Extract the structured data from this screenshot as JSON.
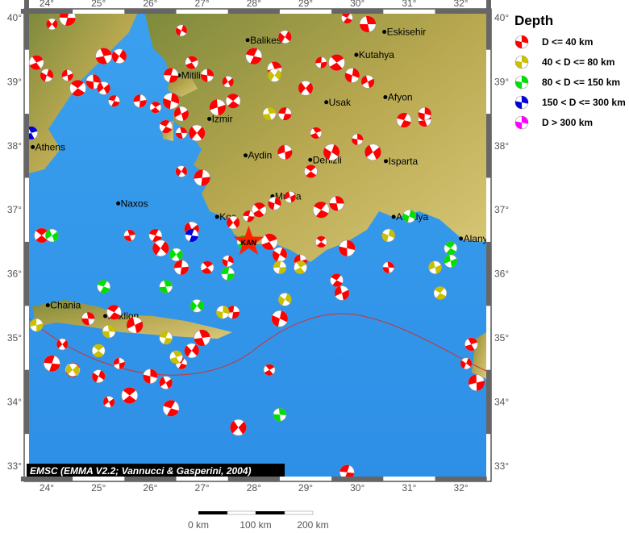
{
  "legend": {
    "title": "Depth",
    "items": [
      {
        "label": "D <= 40 km",
        "color": "#ff0000"
      },
      {
        "label": "40 < D <= 80 km",
        "color": "#c8c000"
      },
      {
        "label": "80 < D <= 150 km",
        "color": "#00e000"
      },
      {
        "label": "150 < D <= 300 km",
        "color": "#0000dd"
      },
      {
        "label": "D > 300 km",
        "color": "#ff00ff"
      }
    ]
  },
  "credit": "EMSC (EMMA V2.2; Vannucci & Gasperini, 2004)",
  "lon_ticks": [
    "24°",
    "25°",
    "26°",
    "27°",
    "28°",
    "29°",
    "30°",
    "31°",
    "32°"
  ],
  "lat_ticks": [
    "40°",
    "39°",
    "38°",
    "37°",
    "36°",
    "35°",
    "34°",
    "33°"
  ],
  "scale": {
    "labels": [
      "0 km",
      "100 km",
      "200 km"
    ]
  },
  "star": {
    "label": "KAN",
    "lon": 27.9,
    "lat": 36.5,
    "color": "#ff2000"
  },
  "cities": [
    {
      "name": "Balikesir",
      "lon": 27.88,
      "lat": 39.65
    },
    {
      "name": "Eskisehir",
      "lon": 30.52,
      "lat": 39.78
    },
    {
      "name": "Kutahya",
      "lon": 29.98,
      "lat": 39.42
    },
    {
      "name": "Mitilini",
      "lon": 26.55,
      "lat": 39.1
    },
    {
      "name": "Izmir",
      "lon": 27.14,
      "lat": 38.42
    },
    {
      "name": "Afyon",
      "lon": 30.54,
      "lat": 38.76
    },
    {
      "name": "Usak",
      "lon": 29.4,
      "lat": 38.68
    },
    {
      "name": "Athens",
      "lon": 23.73,
      "lat": 37.98
    },
    {
      "name": "Aydin",
      "lon": 27.84,
      "lat": 37.85
    },
    {
      "name": "Denizli",
      "lon": 29.09,
      "lat": 37.78
    },
    {
      "name": "Isparta",
      "lon": 30.55,
      "lat": 37.76
    },
    {
      "name": "Mugla",
      "lon": 28.36,
      "lat": 37.21
    },
    {
      "name": "Naxos",
      "lon": 25.38,
      "lat": 37.1
    },
    {
      "name": "Kos",
      "lon": 27.29,
      "lat": 36.89
    },
    {
      "name": "Antalya",
      "lon": 30.7,
      "lat": 36.89
    },
    {
      "name": "Alanya",
      "lon": 32.0,
      "lat": 36.55
    },
    {
      "name": "Chania",
      "lon": 24.02,
      "lat": 35.51
    },
    {
      "name": "Iraklion",
      "lon": 25.13,
      "lat": 35.34
    }
  ],
  "events": [
    [
      24.1,
      39.9,
      0
    ],
    [
      24.4,
      40.0,
      0
    ],
    [
      23.8,
      39.3,
      0
    ],
    [
      24.0,
      39.1,
      0
    ],
    [
      24.4,
      39.1,
      0
    ],
    [
      24.6,
      38.9,
      0
    ],
    [
      24.9,
      39.0,
      0
    ],
    [
      25.1,
      38.9,
      0
    ],
    [
      25.3,
      38.7,
      0
    ],
    [
      25.1,
      39.4,
      0
    ],
    [
      25.4,
      39.4,
      0
    ],
    [
      25.8,
      38.7,
      0
    ],
    [
      26.1,
      38.6,
      0
    ],
    [
      26.4,
      38.7,
      0
    ],
    [
      26.6,
      38.5,
      0
    ],
    [
      26.3,
      38.3,
      0
    ],
    [
      26.6,
      38.2,
      0
    ],
    [
      26.9,
      38.2,
      0
    ],
    [
      26.4,
      39.1,
      0
    ],
    [
      26.8,
      39.3,
      0
    ],
    [
      26.6,
      39.8,
      0
    ],
    [
      27.3,
      38.6,
      0
    ],
    [
      27.6,
      38.7,
      0
    ],
    [
      27.1,
      39.1,
      0
    ],
    [
      27.5,
      39.0,
      0
    ],
    [
      28.0,
      39.4,
      0
    ],
    [
      28.4,
      39.2,
      0
    ],
    [
      28.6,
      39.7,
      0
    ],
    [
      29.3,
      39.3,
      0
    ],
    [
      29.6,
      39.3,
      0
    ],
    [
      29.9,
      39.1,
      0
    ],
    [
      30.2,
      39.0,
      0
    ],
    [
      29.8,
      40.0,
      0
    ],
    [
      30.2,
      39.9,
      0
    ],
    [
      29.0,
      38.9,
      0
    ],
    [
      28.6,
      38.5,
      0
    ],
    [
      29.2,
      38.2,
      0
    ],
    [
      29.5,
      37.9,
      0
    ],
    [
      28.6,
      37.9,
      0
    ],
    [
      29.1,
      37.6,
      0
    ],
    [
      30.0,
      38.1,
      0
    ],
    [
      30.3,
      37.9,
      0
    ],
    [
      30.9,
      38.4,
      0
    ],
    [
      31.3,
      38.4,
      0
    ],
    [
      26.6,
      37.6,
      0
    ],
    [
      27.0,
      37.5,
      0
    ],
    [
      28.1,
      37.0,
      0
    ],
    [
      28.4,
      37.1,
      0
    ],
    [
      28.7,
      37.2,
      0
    ],
    [
      29.3,
      37.0,
      0
    ],
    [
      29.6,
      37.1,
      0
    ],
    [
      27.6,
      36.8,
      0
    ],
    [
      27.9,
      36.9,
      0
    ],
    [
      28.3,
      36.5,
      0
    ],
    [
      28.5,
      36.3,
      0
    ],
    [
      28.9,
      36.2,
      0
    ],
    [
      29.3,
      36.5,
      0
    ],
    [
      29.8,
      36.4,
      0
    ],
    [
      26.8,
      36.7,
      0
    ],
    [
      26.1,
      36.6,
      0
    ],
    [
      25.6,
      36.6,
      0
    ],
    [
      26.2,
      36.4,
      0
    ],
    [
      26.6,
      36.1,
      0
    ],
    [
      27.1,
      36.1,
      0
    ],
    [
      27.5,
      36.2,
      0
    ],
    [
      25.7,
      35.2,
      0
    ],
    [
      25.3,
      35.4,
      0
    ],
    [
      24.8,
      35.3,
      0
    ],
    [
      24.3,
      34.9,
      0
    ],
    [
      24.1,
      34.6,
      0
    ],
    [
      24.5,
      34.5,
      0
    ],
    [
      25.0,
      34.4,
      0
    ],
    [
      25.4,
      34.6,
      0
    ],
    [
      25.6,
      34.1,
      0
    ],
    [
      26.0,
      34.4,
      0
    ],
    [
      26.3,
      34.3,
      0
    ],
    [
      26.6,
      34.6,
      0
    ],
    [
      27.0,
      35.0,
      0
    ],
    [
      26.8,
      34.8,
      0
    ],
    [
      27.6,
      35.4,
      0
    ],
    [
      28.3,
      34.5,
      0
    ],
    [
      28.5,
      35.3,
      0
    ],
    [
      29.7,
      35.7,
      0
    ],
    [
      29.6,
      35.9,
      0
    ],
    [
      30.6,
      36.1,
      0
    ],
    [
      27.7,
      33.6,
      0
    ],
    [
      29.8,
      32.9,
      0
    ],
    [
      32.2,
      34.9,
      0
    ],
    [
      32.1,
      34.6,
      0
    ],
    [
      32.3,
      34.3,
      0
    ],
    [
      23.9,
      36.6,
      0
    ],
    [
      31.3,
      38.5,
      0
    ],
    [
      25.2,
      34.0,
      0
    ],
    [
      26.4,
      33.9,
      0
    ],
    [
      28.3,
      38.5,
      1
    ],
    [
      28.4,
      39.1,
      1
    ],
    [
      28.5,
      36.1,
      1
    ],
    [
      28.9,
      36.1,
      1
    ],
    [
      30.6,
      36.6,
      1
    ],
    [
      31.5,
      36.1,
      1
    ],
    [
      31.6,
      35.7,
      1
    ],
    [
      25.2,
      35.1,
      1
    ],
    [
      24.5,
      34.5,
      1
    ],
    [
      26.3,
      35.0,
      1
    ],
    [
      26.5,
      34.7,
      1
    ],
    [
      28.6,
      35.6,
      1
    ],
    [
      23.8,
      35.2,
      1
    ],
    [
      25.0,
      34.8,
      1
    ],
    [
      27.4,
      35.4,
      1
    ],
    [
      24.1,
      36.6,
      2
    ],
    [
      25.1,
      35.8,
      2
    ],
    [
      26.3,
      35.8,
      2
    ],
    [
      26.9,
      35.5,
      2
    ],
    [
      27.5,
      36.0,
      2
    ],
    [
      27.8,
      36.5,
      2
    ],
    [
      31.0,
      36.9,
      2
    ],
    [
      31.8,
      36.2,
      2
    ],
    [
      31.8,
      36.4,
      2
    ],
    [
      28.5,
      33.8,
      2
    ],
    [
      26.5,
      36.3,
      2
    ],
    [
      26.8,
      36.6,
      3
    ],
    [
      23.7,
      38.2,
      3
    ]
  ]
}
